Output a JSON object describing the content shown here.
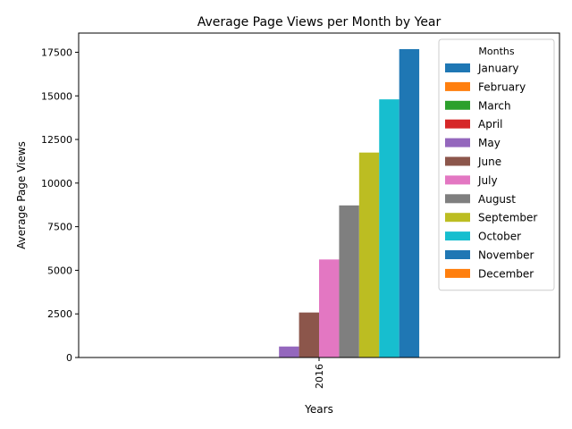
{
  "chart_data": {
    "type": "bar",
    "title": "Average Page Views per Month by Year",
    "xlabel": "Years",
    "ylabel": "Average Page Views",
    "categories": [
      "2016"
    ],
    "ylim": [
      0,
      18600
    ],
    "yticks": [
      0,
      2500,
      5000,
      7500,
      10000,
      12500,
      15000,
      17500
    ],
    "legend_title": "Months",
    "legend_position": "top-right",
    "grid": false,
    "series": [
      {
        "name": "January",
        "color": "#1f77b4",
        "values": [
          0
        ]
      },
      {
        "name": "February",
        "color": "#ff7f0e",
        "values": [
          0
        ]
      },
      {
        "name": "March",
        "color": "#2ca02c",
        "values": [
          0
        ]
      },
      {
        "name": "April",
        "color": "#d62728",
        "values": [
          0
        ]
      },
      {
        "name": "May",
        "color": "#9467bd",
        "values": [
          630
        ]
      },
      {
        "name": "June",
        "color": "#8c564b",
        "values": [
          2580
        ]
      },
      {
        "name": "July",
        "color": "#e377c2",
        "values": [
          5620
        ]
      },
      {
        "name": "August",
        "color": "#7f7f7f",
        "values": [
          8720
        ]
      },
      {
        "name": "September",
        "color": "#bcbd22",
        "values": [
          11750
        ]
      },
      {
        "name": "October",
        "color": "#17becf",
        "values": [
          14800
        ]
      },
      {
        "name": "November",
        "color": "#1f77b4",
        "values": [
          17680
        ]
      },
      {
        "name": "December",
        "color": "#ff7f0e",
        "values": [
          0
        ]
      }
    ]
  }
}
